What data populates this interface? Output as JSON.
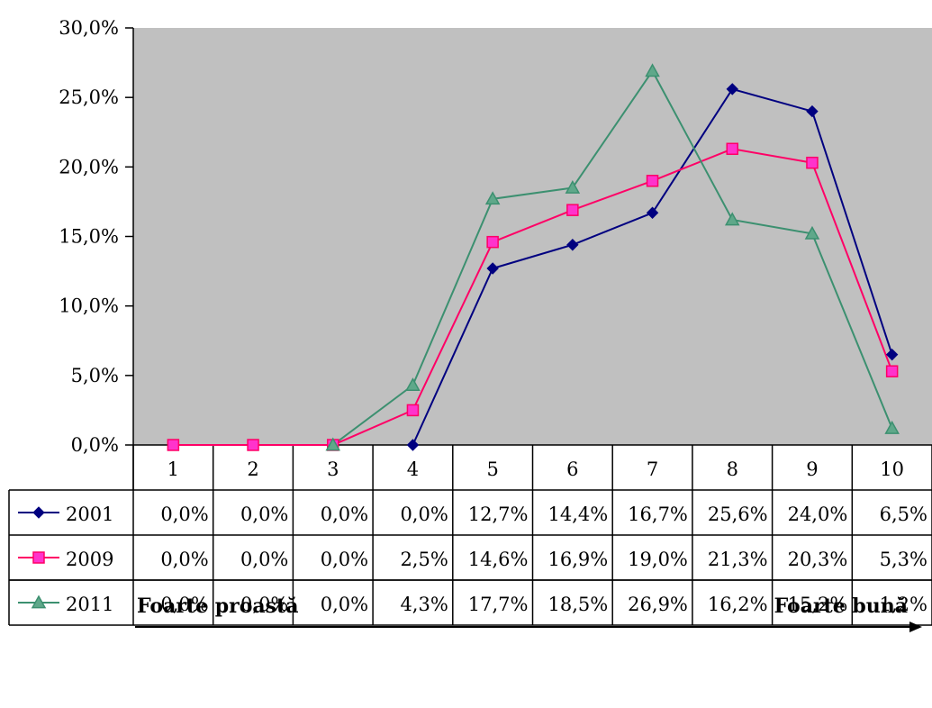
{
  "chart_data": {
    "type": "line",
    "categories": [
      "1",
      "2",
      "3",
      "4",
      "5",
      "6",
      "7",
      "8",
      "9",
      "10"
    ],
    "ylim": [
      0,
      30
    ],
    "yticks": [
      "0,0%",
      "5,0%",
      "10,0%",
      "15,0%",
      "20,0%",
      "25,0%",
      "30,0%"
    ],
    "ytick_values": [
      0,
      5,
      10,
      15,
      20,
      25,
      30
    ],
    "grid": false,
    "plot_background": "#c0c0c0",
    "series": [
      {
        "name": "2001",
        "color": "#000080",
        "marker": "diamond",
        "start_index": 3,
        "values": [
          0.0,
          0.0,
          0.0,
          0.0,
          12.7,
          14.4,
          16.7,
          25.6,
          24.0,
          6.5
        ],
        "labels": [
          "0,0%",
          "0,0%",
          "0,0%",
          "0,0%",
          "12,7%",
          "14,4%",
          "16,7%",
          "25,6%",
          "24,0%",
          "6,5%"
        ]
      },
      {
        "name": "2009",
        "color": "#ff0066",
        "marker_fill": "#ff33cc",
        "marker": "square",
        "start_index": 0,
        "values": [
          0.0,
          0.0,
          0.0,
          2.5,
          14.6,
          16.9,
          19.0,
          21.3,
          20.3,
          5.3
        ],
        "labels": [
          "0,0%",
          "0,0%",
          "0,0%",
          "2,5%",
          "14,6%",
          "16,9%",
          "19,0%",
          "21,3%",
          "20,3%",
          "5,3%"
        ]
      },
      {
        "name": "2011",
        "color": "#3c9070",
        "marker_fill": "#5fa88a",
        "marker": "triangle",
        "start_index": 2,
        "values": [
          0.0,
          0.0,
          0.0,
          4.3,
          17.7,
          18.5,
          26.9,
          16.2,
          15.2,
          1.2
        ],
        "labels": [
          "0,0%",
          "0,0%",
          "0,0%",
          "4,3%",
          "17,7%",
          "18,5%",
          "26,9%",
          "16,2%",
          "15,2%",
          "1,2%"
        ]
      }
    ],
    "scale": {
      "left_label": "Foarte proastă",
      "right_label": "Foarte bună"
    }
  }
}
